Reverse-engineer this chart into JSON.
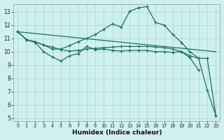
{
  "bg_color": "#cff0ee",
  "line_color": "#1a7068",
  "grid_color": "#a8dbd8",
  "xlabel": "Humidex (Indice chaleur)",
  "xlim": [
    -0.5,
    23.5
  ],
  "ylim": [
    4.8,
    13.6
  ],
  "yticks": [
    5,
    6,
    7,
    8,
    9,
    10,
    11,
    12,
    13
  ],
  "curve1_x": [
    0,
    1,
    2,
    3,
    4,
    5,
    6,
    7,
    8,
    9,
    10,
    11,
    12,
    13,
    14,
    15,
    16,
    17,
    18,
    19,
    20,
    21
  ],
  "curve1_y": [
    11.5,
    10.9,
    10.7,
    10.0,
    9.6,
    9.3,
    9.7,
    9.85,
    10.4,
    10.15,
    10.2,
    10.1,
    10.05,
    10.1,
    10.1,
    10.1,
    10.0,
    10.0,
    9.95,
    10.0,
    9.55,
    8.6
  ],
  "curve2_x": [
    0,
    1,
    2,
    3,
    4,
    5,
    6,
    7,
    8,
    9,
    10,
    11,
    12,
    13,
    14,
    15,
    16,
    17,
    18,
    19,
    20,
    21,
    22,
    23
  ],
  "curve2_y": [
    11.5,
    10.9,
    10.75,
    10.5,
    10.2,
    10.2,
    10.45,
    10.75,
    11.0,
    11.3,
    11.7,
    12.1,
    11.85,
    13.05,
    13.3,
    13.4,
    12.2,
    12.0,
    11.3,
    10.7,
    10.0,
    9.5,
    7.1,
    5.2
  ],
  "curve3_x": [
    0,
    1,
    2,
    3,
    4,
    5,
    6,
    7,
    8,
    9,
    10,
    11,
    12,
    13,
    14,
    15,
    16,
    17,
    18,
    19,
    20,
    21,
    22,
    23
  ],
  "curve3_y": [
    11.5,
    10.9,
    10.75,
    10.5,
    10.35,
    10.15,
    10.05,
    10.1,
    10.2,
    10.25,
    10.3,
    10.35,
    10.4,
    10.4,
    10.4,
    10.4,
    10.35,
    10.3,
    10.2,
    10.0,
    9.7,
    9.5,
    9.5,
    5.2
  ],
  "line4_x": [
    0,
    23
  ],
  "line4_y": [
    11.5,
    10.0
  ]
}
